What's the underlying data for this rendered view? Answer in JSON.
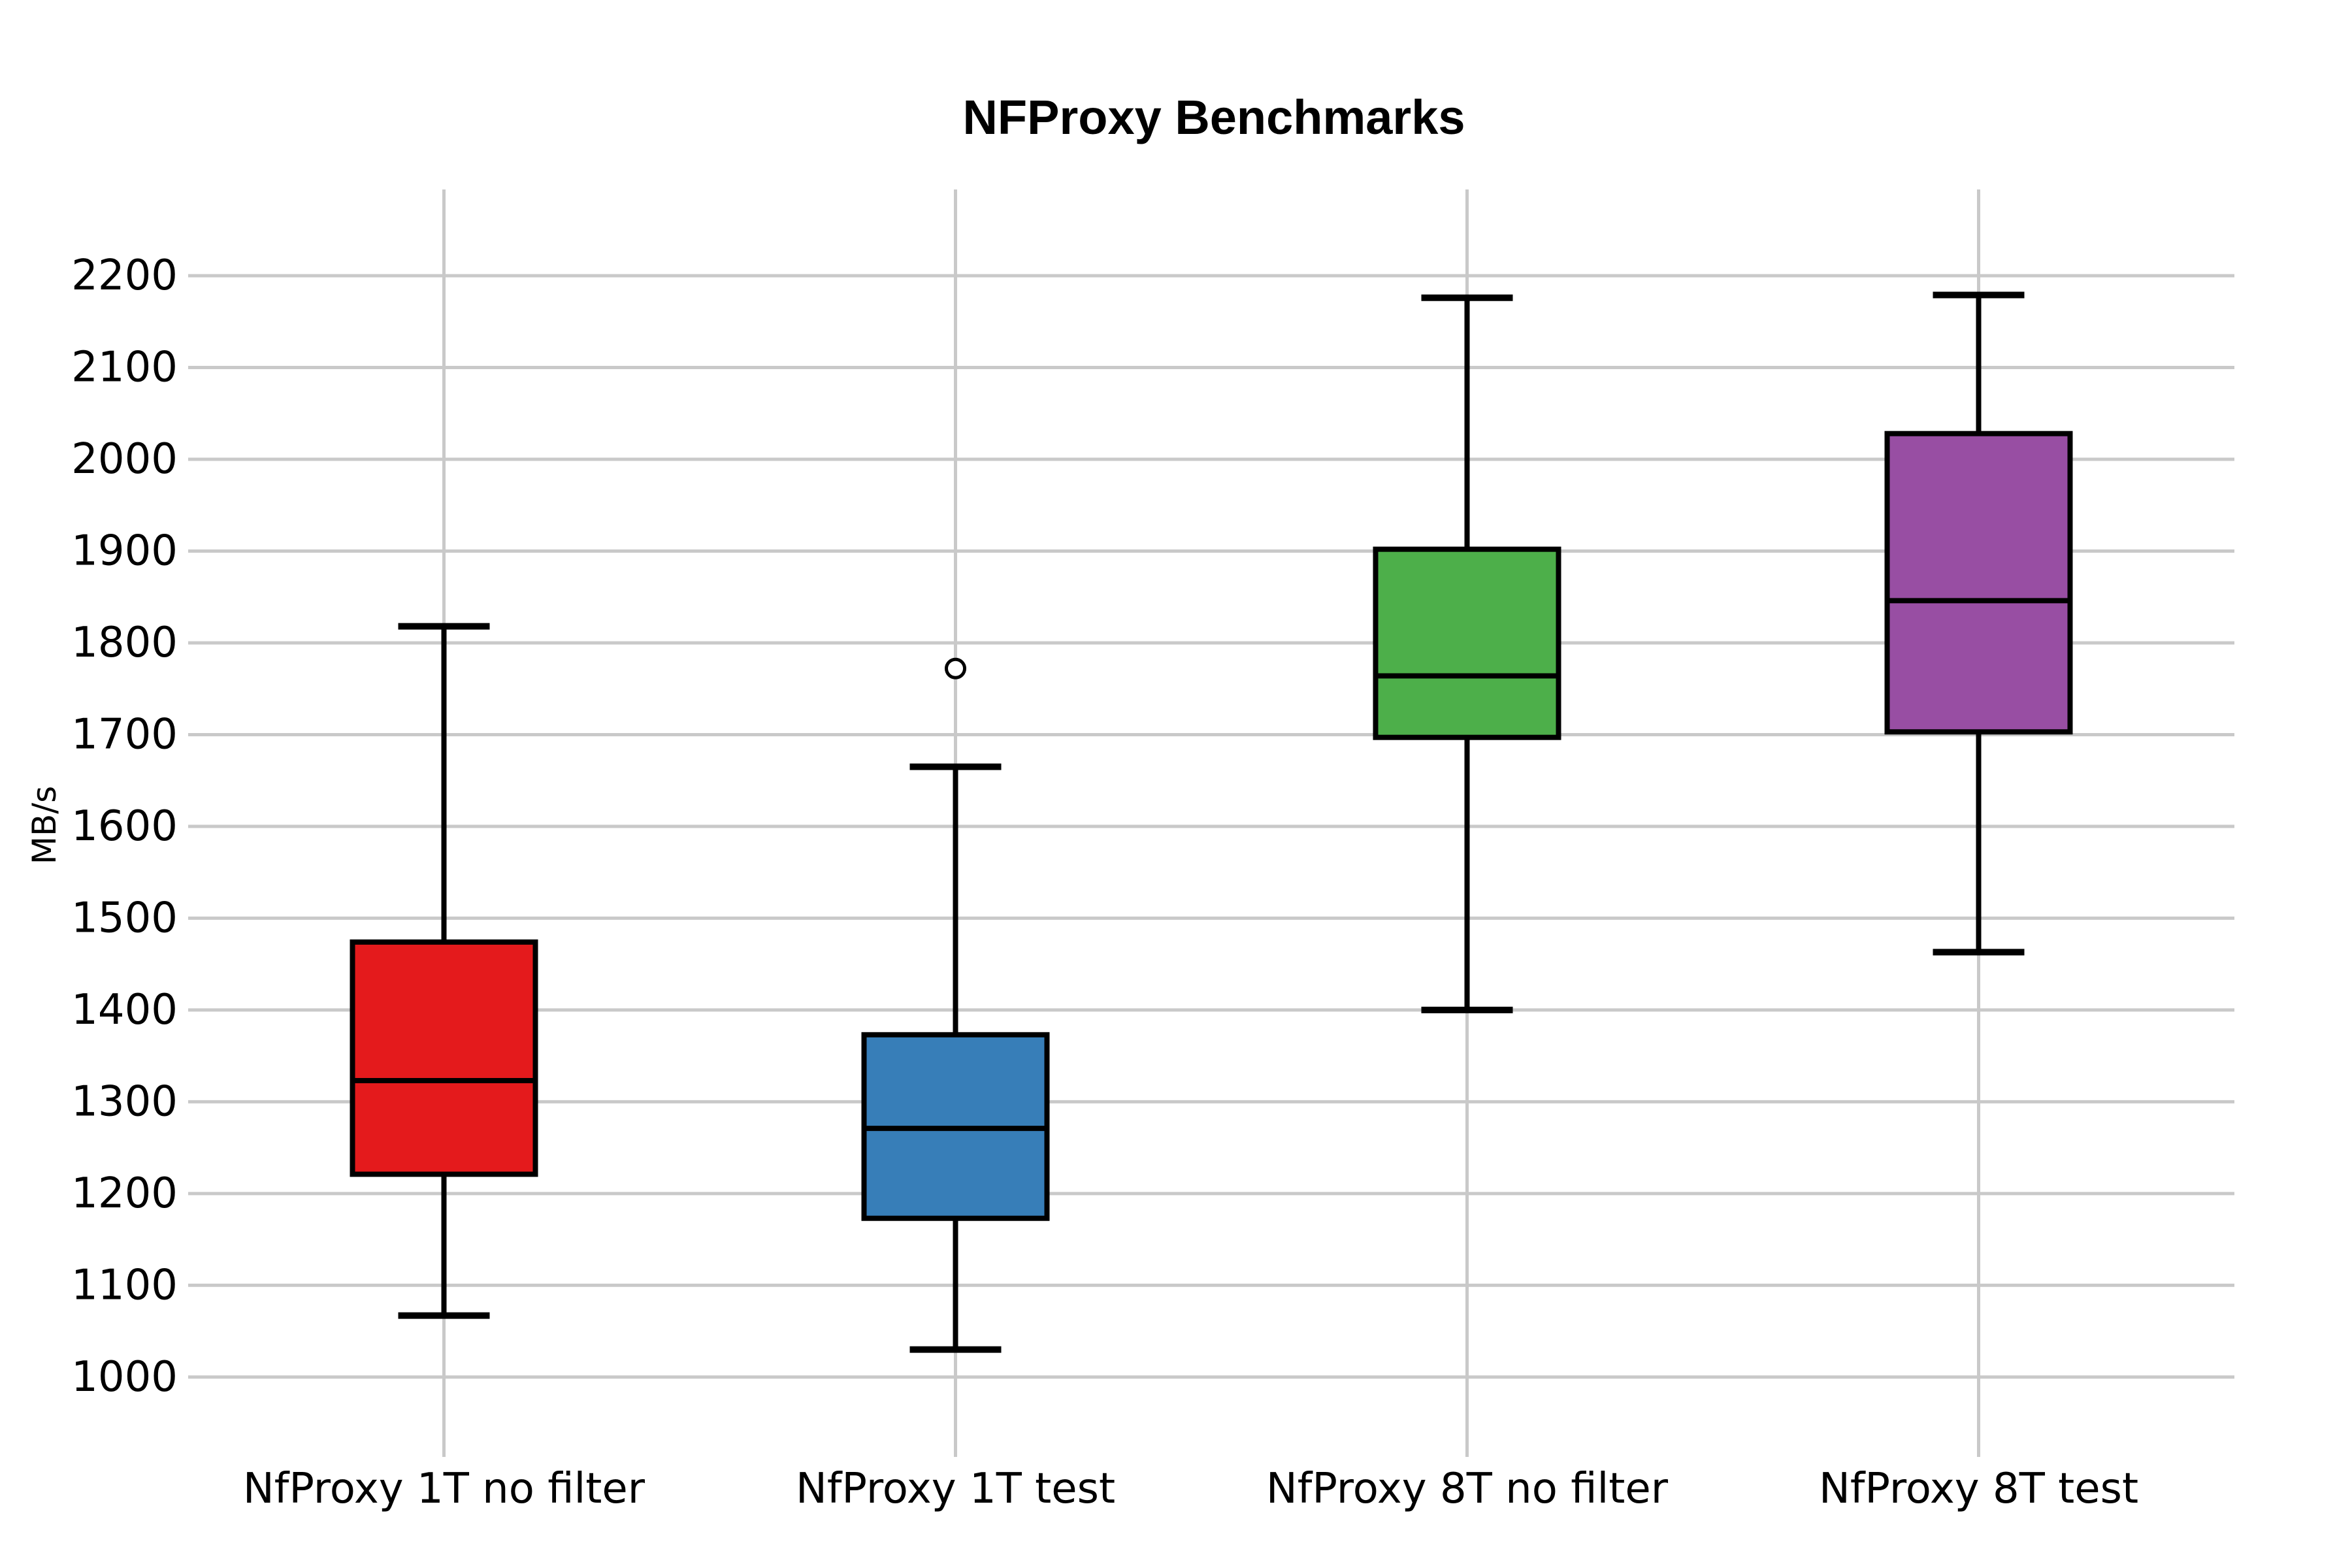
{
  "page": {
    "background": "#ffffff"
  },
  "chart_data": {
    "type": "box",
    "title": "NFProxy Benchmarks",
    "ylabel": "MB/s",
    "xlabel": "",
    "categories": [
      "NfProxy 1T no filter",
      "NfProxy 1T test",
      "NfProxy 8T no filter",
      "NfProxy 8T test"
    ],
    "yticks": [
      1000,
      1100,
      1200,
      1300,
      1400,
      1500,
      1600,
      1700,
      1800,
      1900,
      2000,
      2100,
      2200
    ],
    "ylim": [
      913,
      2294
    ],
    "grid": true,
    "legend_position": "none",
    "series": [
      {
        "label": "NfProxy 1T no filter",
        "color": "#e41a1c",
        "whisker_low": 1067,
        "q1": 1221,
        "median": 1323,
        "q3": 1474,
        "whisker_high": 1818,
        "outliers": []
      },
      {
        "label": "NfProxy 1T test",
        "color": "#377eb8",
        "whisker_low": 1030,
        "q1": 1173,
        "median": 1271,
        "q3": 1373,
        "whisker_high": 1665,
        "outliers": [
          1772
        ]
      },
      {
        "label": "NfProxy 8T no filter",
        "color": "#4daf4a",
        "whisker_low": 1400,
        "q1": 1697,
        "median": 1764,
        "q3": 1902,
        "whisker_high": 2176,
        "outliers": []
      },
      {
        "label": "NfProxy 8T test",
        "color": "#984ea3",
        "whisker_low": 1463,
        "q1": 1703,
        "median": 1846,
        "q3": 2028,
        "whisker_high": 2179,
        "outliers": []
      }
    ],
    "style_colors": {
      "grid": "#c9c9c9",
      "box_edge": "#000000",
      "text": "#000000",
      "outlier_fill": "#ffffff"
    }
  }
}
